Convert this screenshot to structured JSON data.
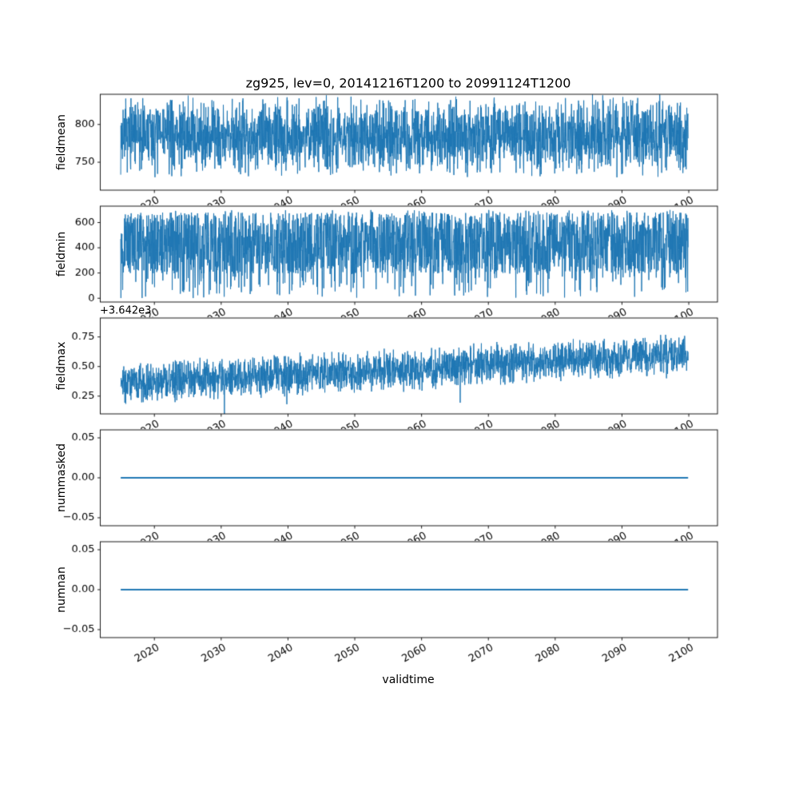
{
  "figure": {
    "title": "zg925, lev=0, 20141216T1200 to 20991124T1200",
    "line_color": "#1f77b4",
    "background": "#ffffff",
    "text_color": "#000000"
  },
  "x_axis": {
    "label": "validtime",
    "lim": [
      2011.9,
      2104.3
    ],
    "ticks": [
      2020,
      2030,
      2040,
      2050,
      2060,
      2070,
      2080,
      2090,
      2100
    ],
    "tick_labels": [
      "2020",
      "2030",
      "2040",
      "2050",
      "2060",
      "2070",
      "2080",
      "2090",
      "2100"
    ],
    "tick_rotation_deg": 30,
    "data_start": 2014.96,
    "data_end": 2099.9
  },
  "chart_data": [
    {
      "type": "line",
      "name": "fieldmean",
      "ylabel": "fieldmean",
      "ylim": [
        713,
        840
      ],
      "yticks": [
        750,
        800
      ],
      "ytick_labels": [
        "750",
        "800"
      ],
      "description": "dense noisy series, band roughly 730-832, occasional dips to ~718, no trend",
      "gen": {
        "kind": "noise",
        "seed": 7,
        "base": 786,
        "amp": 42,
        "trend": 0,
        "dip_prob": 0.012,
        "dip": 24,
        "n": 2600
      }
    },
    {
      "type": "line",
      "name": "fieldmin",
      "ylabel": "fieldmin",
      "ylim": [
        -30,
        730
      ],
      "yticks": [
        0,
        200,
        400,
        600
      ],
      "ytick_labels": [
        "0",
        "200",
        "400",
        "600"
      ],
      "description": "very dense noisy series, band roughly 195-700, frequent downward spikes to near 0, no trend",
      "gen": {
        "kind": "uniform-spiky",
        "seed": 13,
        "lo": 195,
        "hi": 680,
        "spike_prob": 0.08,
        "spike_lo": 0,
        "spike_hi": 230,
        "top_prob": 0.02,
        "top_lo": 650,
        "top_hi": 700,
        "n": 2600
      }
    },
    {
      "type": "line",
      "name": "fieldmax",
      "ylabel": "fieldmax",
      "offset_text": "+3.642e3",
      "ylim": [
        3642.1,
        3642.91
      ],
      "yticks": [
        3642.25,
        3642.5,
        3642.75
      ],
      "ytick_labels": [
        "0.25",
        "0.50",
        "0.75"
      ],
      "description": "noisy series around 3642.4 rising to about 3642.65 by 2100, occasional spikes toward 3642.15 and 3642.9",
      "gen": {
        "kind": "noise",
        "seed": 21,
        "base": 3642.36,
        "amp": 0.145,
        "trend": 0.24,
        "dip_prob": 0.008,
        "dip": 0.16,
        "n": 2600
      }
    },
    {
      "type": "line",
      "name": "nummasked",
      "ylabel": "nummasked",
      "ylim": [
        -0.06,
        0.06
      ],
      "yticks": [
        -0.05,
        0.0,
        0.05
      ],
      "ytick_labels": [
        "−0.05",
        "0.00",
        "0.05"
      ],
      "description": "constant 0.00 from 2014 to 2100",
      "gen": {
        "kind": "const",
        "value": 0,
        "n": 2
      }
    },
    {
      "type": "line",
      "name": "numnan",
      "ylabel": "numnan",
      "ylim": [
        -0.06,
        0.06
      ],
      "yticks": [
        -0.05,
        0.0,
        0.05
      ],
      "ytick_labels": [
        "−0.05",
        "0.00",
        "0.05"
      ],
      "description": "constant 0.00 from 2014 to 2100",
      "gen": {
        "kind": "const",
        "value": 0,
        "n": 2
      }
    }
  ]
}
